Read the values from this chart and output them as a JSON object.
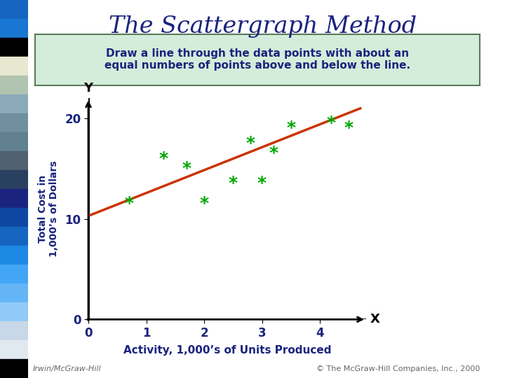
{
  "title": "The Scattergraph Method",
  "subtitle": "Draw a line through the data points with about an\nequal numbers of points above and below the line.",
  "xlabel": "Activity, 1,000’s of Units Produced",
  "ylabel": "Total Cost in\n1,000’s of Dollars",
  "scatter_x": [
    0.7,
    1.3,
    1.7,
    2.0,
    2.5,
    2.8,
    3.0,
    3.2,
    3.5,
    4.2,
    4.5
  ],
  "scatter_y": [
    11.5,
    16.0,
    15.0,
    11.5,
    13.5,
    17.5,
    13.5,
    16.5,
    19.0,
    19.5,
    19.0
  ],
  "scatter_color": "#00aa00",
  "line_x": [
    0,
    4.7
  ],
  "line_y": [
    10.3,
    21.0
  ],
  "line_color": "#cc3300",
  "line_width": 2.5,
  "xlim": [
    0,
    4.8
  ],
  "ylim": [
    0,
    22
  ],
  "xticks": [
    0,
    1,
    2,
    3,
    4
  ],
  "yticks": [
    0,
    10,
    20
  ],
  "title_color": "#1a237e",
  "subtitle_bg": "#d4edda",
  "subtitle_border": "#5a7a5a",
  "axis_label_color": "#1a237e",
  "tick_label_color": "#1a237e",
  "bg_color": "#ffffff",
  "left_bar_colors": [
    "#1a237e",
    "#0d47a1",
    "#1565c0",
    "#1976d2",
    "#1e88e5",
    "#42a5f5",
    "#90caf9",
    "#bbdefb",
    "#b0bec5",
    "#90a4ae",
    "#78909c",
    "#607d8b",
    "#546e7a",
    "#455a64",
    "#37474f",
    "#263238",
    "#1a237e",
    "#0d47a1",
    "#1565c0",
    "#000000"
  ],
  "footer_left": "Irwin/McGraw-Hill",
  "footer_right": "© The McGraw-Hill Companies, Inc., 2000"
}
